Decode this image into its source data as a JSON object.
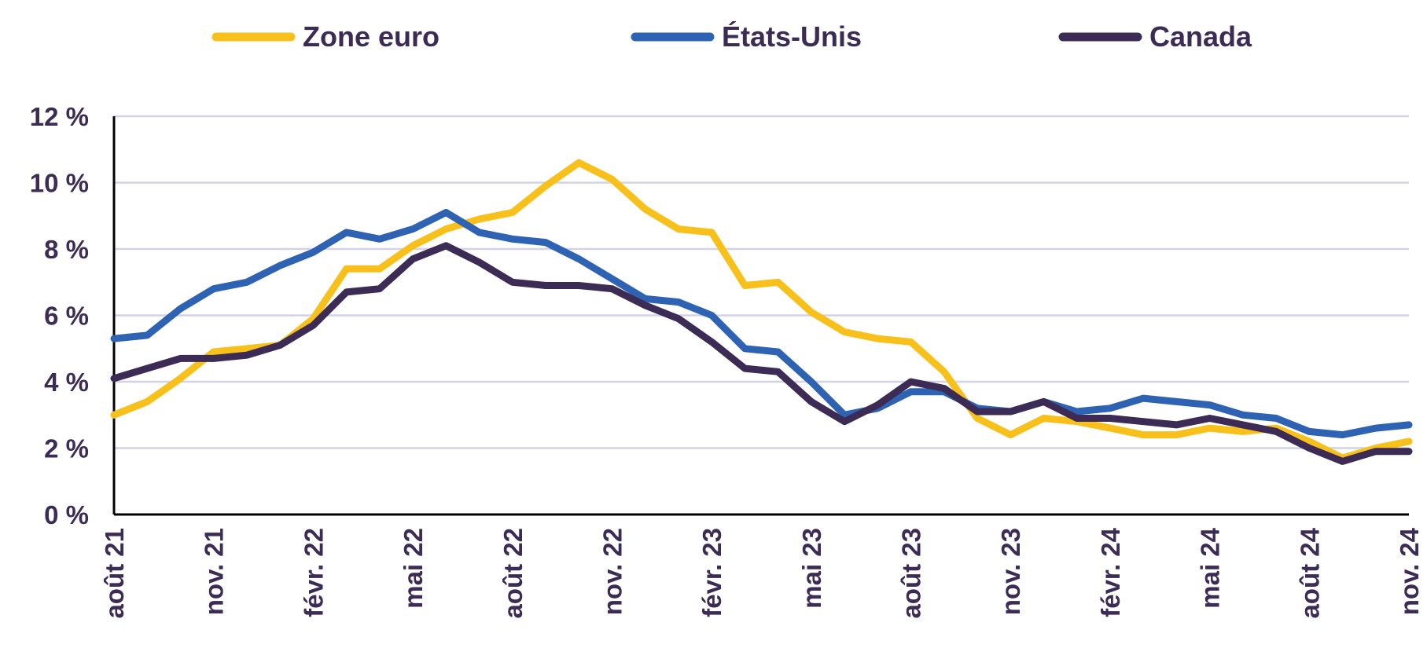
{
  "chart_data": {
    "type": "line",
    "title": "",
    "xlabel": "",
    "ylabel": "",
    "ylim": [
      0,
      12
    ],
    "y_ticks": [
      "0 %",
      "2 %",
      "4 %",
      "6 %",
      "8 %",
      "10 %",
      "12 %"
    ],
    "y_tick_values": [
      0,
      2,
      4,
      6,
      8,
      10,
      12
    ],
    "x_tick_labels": [
      "août 21",
      "nov. 21",
      "févr. 22",
      "mai 22",
      "août 22",
      "nov. 22",
      "févr. 23",
      "mai 23",
      "août 23",
      "nov. 23",
      "févr. 24",
      "mai 24",
      "août 24",
      "nov. 24"
    ],
    "x_tick_every": 3,
    "grid": "horizontal",
    "legend_position": "top",
    "colors": {
      "text": "#3b2b55",
      "grid": "#d4d2e6",
      "axis": "#000000"
    },
    "series": [
      {
        "name": "Zone euro",
        "color": "#f7c01a",
        "values": [
          3.0,
          3.4,
          4.1,
          4.9,
          5.0,
          5.1,
          5.9,
          7.4,
          7.4,
          8.1,
          8.6,
          8.9,
          9.1,
          9.9,
          10.6,
          10.1,
          9.2,
          8.6,
          8.5,
          6.9,
          7.0,
          6.1,
          5.5,
          5.3,
          5.2,
          4.3,
          2.9,
          2.4,
          2.9,
          2.8,
          2.6,
          2.4,
          2.4,
          2.6,
          2.5,
          2.6,
          2.2,
          1.7,
          2.0,
          2.2
        ]
      },
      {
        "name": "États-Unis",
        "color": "#2e63b3",
        "values": [
          5.3,
          5.4,
          6.2,
          6.8,
          7.0,
          7.5,
          7.9,
          8.5,
          8.3,
          8.6,
          9.1,
          8.5,
          8.3,
          8.2,
          7.7,
          7.1,
          6.5,
          6.4,
          6.0,
          5.0,
          4.9,
          4.0,
          3.0,
          3.2,
          3.7,
          3.7,
          3.2,
          3.1,
          3.4,
          3.1,
          3.2,
          3.5,
          3.4,
          3.3,
          3.0,
          2.9,
          2.5,
          2.4,
          2.6,
          2.7
        ]
      },
      {
        "name": "Canada",
        "color": "#3b2b55",
        "values": [
          4.1,
          4.4,
          4.7,
          4.7,
          4.8,
          5.1,
          5.7,
          6.7,
          6.8,
          7.7,
          8.1,
          7.6,
          7.0,
          6.9,
          6.9,
          6.8,
          6.3,
          5.9,
          5.2,
          4.4,
          4.3,
          3.4,
          2.8,
          3.3,
          4.0,
          3.8,
          3.1,
          3.1,
          3.4,
          2.9,
          2.9,
          2.8,
          2.7,
          2.9,
          2.7,
          2.5,
          2.0,
          1.6,
          1.9,
          1.9
        ]
      }
    ]
  }
}
